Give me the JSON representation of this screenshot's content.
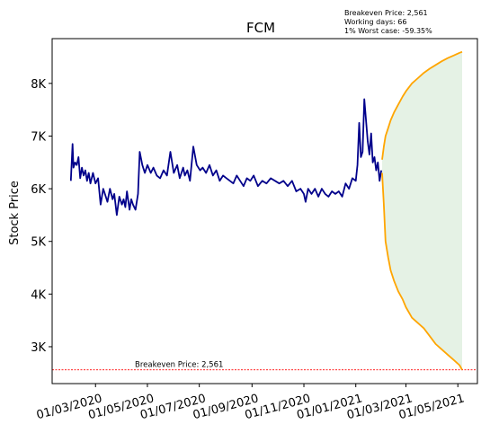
{
  "info_lines": [
    "Breakeven Price: 2,561",
    "Working days: 66",
    "1% Worst case: -59.35%"
  ],
  "chart_data": {
    "type": "line",
    "title": "FCM",
    "xlabel": "",
    "ylabel": "Stock Price",
    "ylim": [
      2300,
      8850
    ],
    "xlim": [
      "2020-01-10",
      "2021-05-24"
    ],
    "yticks": [
      3000,
      4000,
      5000,
      6000,
      7000,
      8000
    ],
    "ytick_labels": [
      "3K",
      "4K",
      "5K",
      "6K",
      "7K",
      "8K"
    ],
    "xticks": [
      "2020-03-01",
      "2020-05-01",
      "2020-07-01",
      "2020-09-01",
      "2020-11-01",
      "2021-01-01",
      "2021-03-01",
      "2021-05-01"
    ],
    "xtick_labels": [
      "01/03/2020",
      "01/05/2020",
      "01/07/2020",
      "01/09/2020",
      "01/11/2020",
      "01/01/2021",
      "01/03/2021",
      "01/05/2021"
    ],
    "breakeven": {
      "value": 2561,
      "label": "Breakeven Price: 2,561"
    },
    "colors": {
      "history": "#00008b",
      "forecast": "#ffa500",
      "fill": "#e5f2e5",
      "breakeven": "#ff0000"
    },
    "history": {
      "x": [
        "2020-02-01",
        "2020-02-03",
        "2020-02-04",
        "2020-02-06",
        "2020-02-08",
        "2020-02-10",
        "2020-02-12",
        "2020-02-14",
        "2020-02-16",
        "2020-02-18",
        "2020-02-20",
        "2020-02-22",
        "2020-02-24",
        "2020-02-27",
        "2020-03-01",
        "2020-03-04",
        "2020-03-07",
        "2020-03-10",
        "2020-03-12",
        "2020-03-15",
        "2020-03-18",
        "2020-03-21",
        "2020-03-23",
        "2020-03-26",
        "2020-03-29",
        "2020-04-01",
        "2020-04-03",
        "2020-04-05",
        "2020-04-07",
        "2020-04-10",
        "2020-04-12",
        "2020-04-14",
        "2020-04-17",
        "2020-04-20",
        "2020-04-22",
        "2020-04-25",
        "2020-04-28",
        "2020-05-01",
        "2020-05-05",
        "2020-05-08",
        "2020-05-12",
        "2020-05-16",
        "2020-05-20",
        "2020-05-24",
        "2020-05-28",
        "2020-06-01",
        "2020-06-05",
        "2020-06-08",
        "2020-06-12",
        "2020-06-14",
        "2020-06-17",
        "2020-06-20",
        "2020-06-24",
        "2020-06-28",
        "2020-07-02",
        "2020-07-05",
        "2020-07-09",
        "2020-07-13",
        "2020-07-17",
        "2020-07-21",
        "2020-07-25",
        "2020-07-29",
        "2020-08-02",
        "2020-08-06",
        "2020-08-10",
        "2020-08-14",
        "2020-08-18",
        "2020-08-22",
        "2020-08-26",
        "2020-08-30",
        "2020-09-03",
        "2020-09-08",
        "2020-09-13",
        "2020-09-18",
        "2020-09-23",
        "2020-09-28",
        "2020-10-03",
        "2020-10-08",
        "2020-10-13",
        "2020-10-18",
        "2020-10-23",
        "2020-10-28",
        "2020-11-01",
        "2020-11-03",
        "2020-11-06",
        "2020-11-10",
        "2020-11-14",
        "2020-11-18",
        "2020-11-22",
        "2020-11-26",
        "2020-11-30",
        "2020-12-04",
        "2020-12-08",
        "2020-12-12",
        "2020-12-16",
        "2020-12-20",
        "2020-12-24",
        "2020-12-28",
        "2021-01-01",
        "2021-01-03",
        "2021-01-05",
        "2021-01-07",
        "2021-01-09",
        "2021-01-11",
        "2021-01-13",
        "2021-01-15",
        "2021-01-17",
        "2021-01-19",
        "2021-01-21",
        "2021-01-23",
        "2021-01-25",
        "2021-01-27",
        "2021-01-29",
        "2021-01-31"
      ],
      "y": [
        6150,
        6850,
        6400,
        6500,
        6450,
        6600,
        6200,
        6400,
        6250,
        6350,
        6150,
        6300,
        6100,
        6300,
        6100,
        6200,
        5700,
        6000,
        5900,
        5750,
        6000,
        5800,
        5900,
        5500,
        5850,
        5700,
        5800,
        5650,
        5950,
        5600,
        5800,
        5700,
        5600,
        5900,
        6700,
        6450,
        6300,
        6450,
        6300,
        6400,
        6250,
        6200,
        6350,
        6250,
        6700,
        6300,
        6450,
        6200,
        6400,
        6250,
        6350,
        6150,
        6800,
        6450,
        6350,
        6400,
        6300,
        6450,
        6250,
        6350,
        6150,
        6250,
        6200,
        6150,
        6100,
        6250,
        6150,
        6050,
        6200,
        6150,
        6250,
        6050,
        6150,
        6100,
        6200,
        6150,
        6100,
        6150,
        6050,
        6150,
        5950,
        6000,
        5900,
        5750,
        6000,
        5900,
        6000,
        5850,
        6000,
        5900,
        5850,
        5950,
        5900,
        5950,
        5850,
        6100,
        6000,
        6200,
        6150,
        6450,
        7250,
        6600,
        6700,
        7700,
        7300,
        6900,
        6650,
        7050,
        6500,
        6600,
        6350,
        6500,
        6150,
        6350
      ]
    },
    "forecast": {
      "x": [
        "2021-02-01",
        "2021-02-03",
        "2021-02-05",
        "2021-02-08",
        "2021-02-11",
        "2021-02-15",
        "2021-02-20",
        "2021-02-25",
        "2021-03-01",
        "2021-03-08",
        "2021-03-15",
        "2021-03-22",
        "2021-03-29",
        "2021-04-05",
        "2021-04-12",
        "2021-04-19",
        "2021-04-26",
        "2021-05-03",
        "2021-05-06"
      ],
      "upper": [
        6550,
        6800,
        7000,
        7150,
        7300,
        7450,
        7600,
        7750,
        7850,
        8000,
        8100,
        8200,
        8280,
        8350,
        8420,
        8480,
        8530,
        8580,
        8600
      ],
      "lower": [
        6300,
        5700,
        5000,
        4700,
        4450,
        4250,
        4050,
        3900,
        3750,
        3550,
        3450,
        3350,
        3200,
        3050,
        2950,
        2850,
        2750,
        2650,
        2561
      ]
    }
  }
}
